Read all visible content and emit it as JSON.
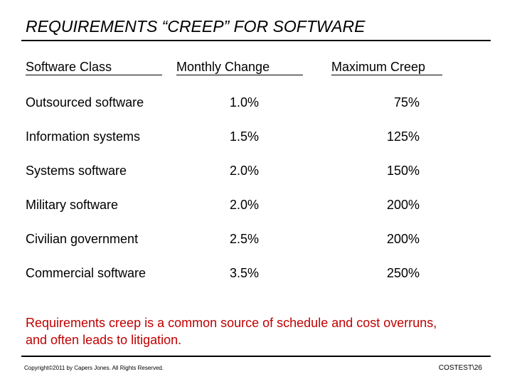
{
  "slide": {
    "title": "REQUIREMENTS “CREEP” FOR SOFTWARE",
    "columns": {
      "class": "Software Class",
      "monthly_change": "Monthly Change",
      "max_creep": "Maximum Creep"
    },
    "rows": [
      {
        "class": "Outsourced software",
        "monthly_change": "1.0%",
        "max_creep": "75%"
      },
      {
        "class": "Information systems",
        "monthly_change": "1.5%",
        "max_creep": "125%"
      },
      {
        "class": "Systems software",
        "monthly_change": "2.0%",
        "max_creep": "150%"
      },
      {
        "class": "Military software",
        "monthly_change": "2.0%",
        "max_creep": "200%"
      },
      {
        "class": "Civilian government",
        "monthly_change": "2.5%",
        "max_creep": "200%"
      },
      {
        "class": "Commercial software",
        "monthly_change": "3.5%",
        "max_creep": "250%"
      }
    ],
    "note": "Requirements creep is a common source of schedule and cost overruns, and often leads to litigation.",
    "copyright": "Copyright©2011 by Capers Jones. All Rights Reserved.",
    "slide_id": "COSTEST\\26",
    "colors": {
      "note": "#c00000",
      "text": "#000000"
    }
  }
}
